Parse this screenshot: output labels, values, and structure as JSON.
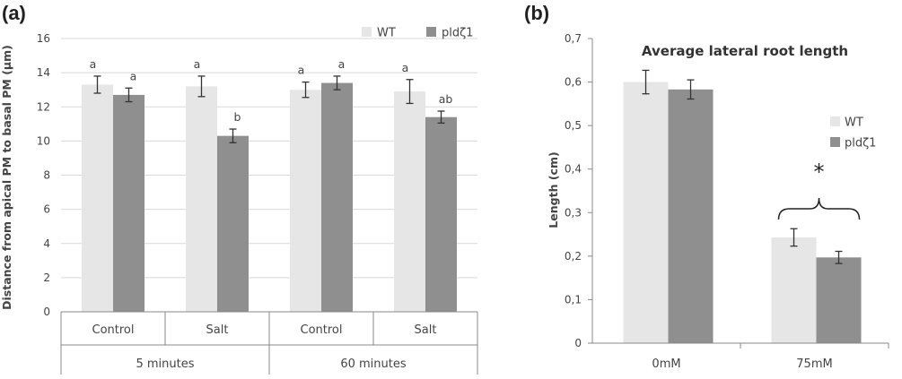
{
  "panels": {
    "a_label": "(a)",
    "b_label": "(b)"
  },
  "chart_data": [
    {
      "type": "bar",
      "title": "",
      "xlabel": "",
      "ylabel": "Distance from apical PM to basal PM (μm)",
      "ylim": [
        0,
        16
      ],
      "yticks": [
        "0",
        "2",
        "4",
        "6",
        "8",
        "10",
        "12",
        "14",
        "16"
      ],
      "grid": true,
      "legend_position": "top-right",
      "categories": [
        "Control",
        "Salt",
        "Control",
        "Salt"
      ],
      "groups": [
        {
          "label": "5 minutes",
          "span": [
            0,
            1
          ]
        },
        {
          "label": "60 minutes",
          "span": [
            2,
            3
          ]
        }
      ],
      "series": [
        {
          "name": "WT",
          "color": "#e6e6e6",
          "values": [
            13.3,
            13.2,
            13.0,
            12.9
          ],
          "errors": [
            0.5,
            0.6,
            0.45,
            0.7
          ],
          "labels": [
            "a",
            "a",
            "a",
            "a"
          ]
        },
        {
          "name": "pldζ1",
          "color": "#8f8f8f",
          "values": [
            12.7,
            10.3,
            13.4,
            11.4
          ],
          "errors": [
            0.4,
            0.4,
            0.4,
            0.35
          ],
          "labels": [
            "a",
            "b",
            "a",
            "ab"
          ]
        }
      ]
    },
    {
      "type": "bar",
      "title": "Average lateral root length",
      "xlabel": "",
      "ylabel": "Length (cm)",
      "ylim": [
        0,
        0.7
      ],
      "yticks": [
        "0",
        "0,1",
        "0,2",
        "0,3",
        "0,4",
        "0,5",
        "0,6",
        "0,7"
      ],
      "grid": false,
      "legend_position": "right",
      "categories": [
        "0mM",
        "75mM"
      ],
      "series": [
        {
          "name": "WT",
          "color": "#e6e6e6",
          "values": [
            0.6,
            0.243
          ],
          "errors": [
            0.027,
            0.02
          ]
        },
        {
          "name": "pldζ1",
          "color": "#8f8f8f",
          "values": [
            0.583,
            0.197
          ],
          "errors": [
            0.022,
            0.014
          ]
        }
      ],
      "annotation": "*"
    }
  ],
  "colors": {
    "wt": "#e6e6e6",
    "mutant": "#8f8f8f",
    "grid": "#d9d9d9",
    "axis": "#888888"
  }
}
